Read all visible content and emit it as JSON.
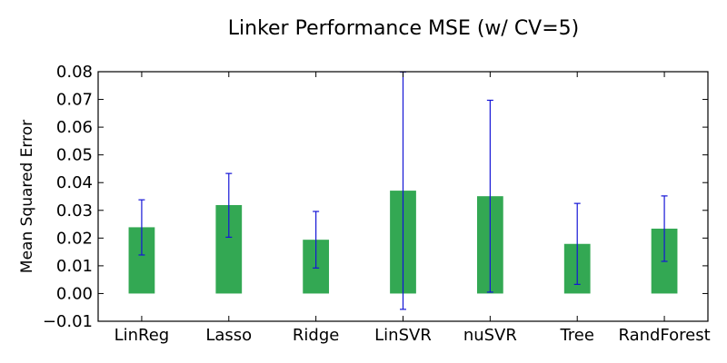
{
  "colors": {
    "bar": "#33a853",
    "error_bar": "#1515d6",
    "axes": "#000000",
    "background": "#ffffff"
  },
  "chart_data": {
    "type": "bar",
    "title": "Linker Performance MSE (w/ CV=5)",
    "xlabel": "",
    "ylabel": "Mean Squared Error",
    "categories": [
      "LinReg",
      "Lasso",
      "Ridge",
      "LinSVR",
      "nuSVR",
      "Tree",
      "RandForest"
    ],
    "values": [
      0.0239,
      0.0319,
      0.0194,
      0.0371,
      0.0351,
      0.0179,
      0.0234
    ],
    "error_low": [
      0.0139,
      0.0203,
      0.0092,
      -0.0057,
      0.0005,
      0.0033,
      0.0116
    ],
    "error_high": [
      0.0338,
      0.0433,
      0.0296,
      0.0799,
      0.0697,
      0.0325,
      0.0352
    ],
    "ylim": [
      -0.01,
      0.08
    ],
    "yticks": [
      -0.01,
      0.0,
      0.01,
      0.02,
      0.03,
      0.04,
      0.05,
      0.06,
      0.07,
      0.08
    ],
    "ytick_labels": [
      "−0.01",
      "0.00",
      "0.01",
      "0.02",
      "0.03",
      "0.04",
      "0.05",
      "0.06",
      "0.07",
      "0.08"
    ],
    "grid": false,
    "legend": "none"
  }
}
